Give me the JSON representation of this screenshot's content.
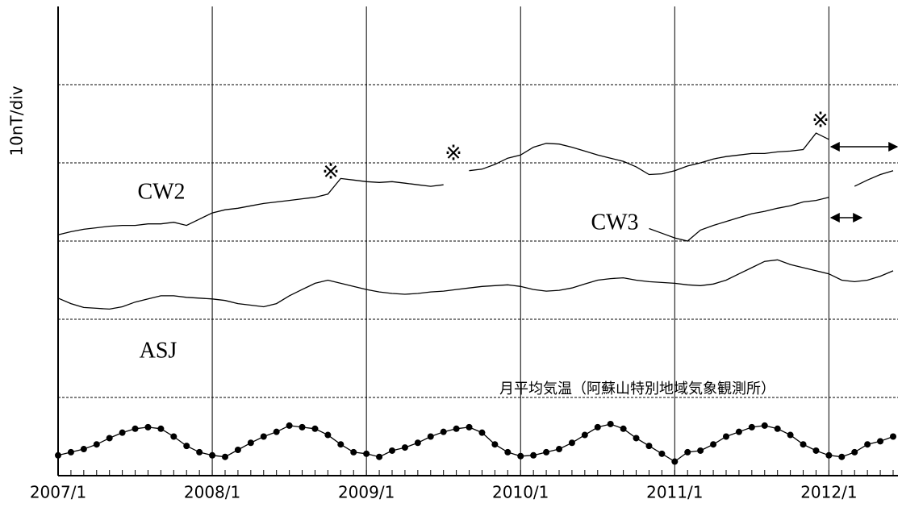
{
  "chart_data": {
    "type": "line",
    "y_label": "10nT/div",
    "x": [
      "2007/1",
      "2007/2",
      "2007/3",
      "2007/4",
      "2007/5",
      "2007/6",
      "2007/7",
      "2007/8",
      "2007/9",
      "2007/10",
      "2007/11",
      "2007/12",
      "2008/1",
      "2008/2",
      "2008/3",
      "2008/4",
      "2008/5",
      "2008/6",
      "2008/7",
      "2008/8",
      "2008/9",
      "2008/10",
      "2008/11",
      "2008/12",
      "2009/1",
      "2009/2",
      "2009/3",
      "2009/4",
      "2009/5",
      "2009/6",
      "2009/7",
      "2009/8",
      "2009/9",
      "2009/10",
      "2009/11",
      "2009/12",
      "2010/1",
      "2010/2",
      "2010/3",
      "2010/4",
      "2010/5",
      "2010/6",
      "2010/7",
      "2010/8",
      "2010/9",
      "2010/10",
      "2010/11",
      "2010/12",
      "2011/1",
      "2011/2",
      "2011/3",
      "2011/4",
      "2011/5",
      "2011/6",
      "2011/7",
      "2011/8",
      "2011/9",
      "2011/10",
      "2011/11",
      "2011/12",
      "2012/1",
      "2012/2",
      "2012/3",
      "2012/4",
      "2012/5",
      "2012/6"
    ],
    "xlim": [
      "2007/1",
      "2012/6"
    ],
    "xticks": [
      "2007/1",
      "2008/1",
      "2009/1",
      "2010/1",
      "2011/1",
      "2012/1"
    ],
    "ylim": [
      0,
      6
    ],
    "yticks": [
      1,
      2,
      3,
      4,
      5
    ],
    "grid": true,
    "series": [
      {
        "name": "CW2",
        "color": "#000000",
        "markers": false,
        "values": [
          3.08,
          3.12,
          3.15,
          3.17,
          3.19,
          3.2,
          3.2,
          3.22,
          3.22,
          3.24,
          3.2,
          3.28,
          3.36,
          3.4,
          3.42,
          3.45,
          3.48,
          3.5,
          3.52,
          3.54,
          3.56,
          3.6,
          3.8,
          3.78,
          3.76,
          3.75,
          3.76,
          3.74,
          3.72,
          3.7,
          3.72,
          null,
          3.9,
          3.92,
          3.98,
          4.06,
          4.1,
          4.2,
          4.25,
          4.24,
          4.2,
          4.15,
          4.1,
          4.06,
          4.02,
          3.95,
          3.85,
          3.86,
          3.9,
          3.96,
          4.0,
          4.05,
          4.08,
          4.1,
          4.12,
          4.12,
          4.14,
          4.15,
          4.17,
          4.38,
          4.3,
          null,
          null,
          null,
          null,
          null
        ]
      },
      {
        "name": "CW3",
        "color": "#000000",
        "markers": false,
        "values": [
          null,
          null,
          null,
          null,
          null,
          null,
          null,
          null,
          null,
          null,
          null,
          null,
          null,
          null,
          null,
          null,
          null,
          null,
          null,
          null,
          null,
          null,
          null,
          null,
          null,
          null,
          null,
          null,
          null,
          null,
          null,
          null,
          null,
          null,
          null,
          null,
          null,
          null,
          null,
          null,
          null,
          null,
          null,
          null,
          null,
          null,
          3.16,
          3.1,
          3.04,
          3.0,
          3.14,
          3.2,
          3.25,
          3.3,
          3.35,
          3.38,
          3.42,
          3.45,
          3.5,
          3.52,
          3.56,
          null,
          3.7,
          3.78,
          3.85,
          3.9
        ]
      },
      {
        "name": "ASJ",
        "color": "#000000",
        "markers": false,
        "values": [
          2.27,
          2.2,
          2.15,
          2.14,
          2.13,
          2.16,
          2.22,
          2.26,
          2.3,
          2.3,
          2.28,
          2.27,
          2.26,
          2.24,
          2.2,
          2.18,
          2.16,
          2.2,
          2.3,
          2.38,
          2.46,
          2.5,
          2.46,
          2.42,
          2.38,
          2.35,
          2.33,
          2.32,
          2.33,
          2.35,
          2.36,
          2.38,
          2.4,
          2.42,
          2.43,
          2.44,
          2.42,
          2.38,
          2.36,
          2.37,
          2.4,
          2.45,
          2.5,
          2.52,
          2.53,
          2.5,
          2.48,
          2.47,
          2.46,
          2.44,
          2.43,
          2.45,
          2.5,
          2.58,
          2.66,
          2.74,
          2.76,
          2.7,
          2.66,
          2.62,
          2.58,
          2.5,
          2.48,
          2.5,
          2.55,
          2.62
        ]
      },
      {
        "name": "月平均気温（阿蘇山特別地域気象観測所）",
        "color": "#000000",
        "markers": true,
        "values": [
          0.26,
          0.3,
          0.34,
          0.4,
          0.48,
          0.55,
          0.6,
          0.62,
          0.6,
          0.5,
          0.38,
          0.3,
          0.26,
          0.24,
          0.33,
          0.42,
          0.5,
          0.56,
          0.64,
          0.62,
          0.6,
          0.52,
          0.4,
          0.3,
          0.28,
          0.24,
          0.32,
          0.36,
          0.42,
          0.5,
          0.56,
          0.6,
          0.62,
          0.55,
          0.4,
          0.3,
          0.25,
          0.26,
          0.3,
          0.34,
          0.42,
          0.52,
          0.62,
          0.66,
          0.6,
          0.48,
          0.38,
          0.28,
          0.18,
          0.3,
          0.32,
          0.4,
          0.5,
          0.56,
          0.62,
          0.64,
          0.6,
          0.52,
          0.4,
          0.32,
          0.26,
          0.24,
          0.3,
          0.4,
          0.44,
          0.5
        ]
      }
    ],
    "annotations": [
      "※",
      "※",
      "※"
    ]
  }
}
